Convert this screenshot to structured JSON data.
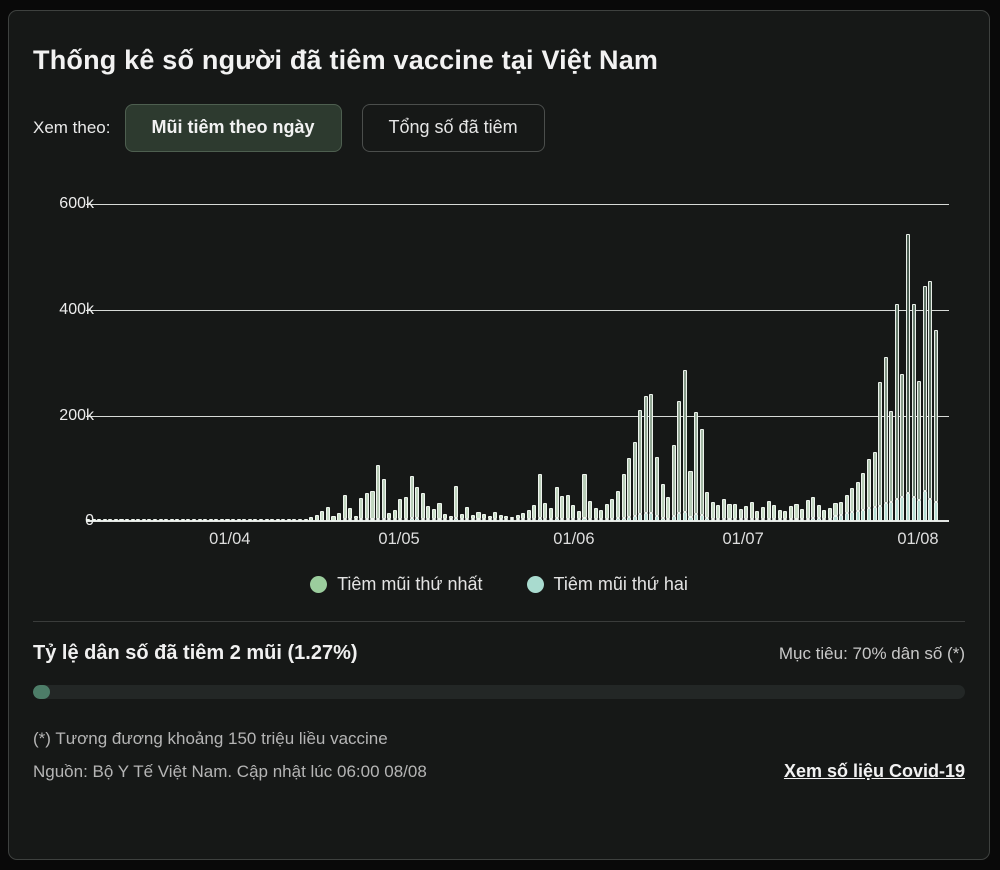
{
  "header": {
    "title": "Thống kê số người đã tiêm vaccine tại Việt Nam"
  },
  "controls": {
    "label": "Xem theo:",
    "buttons": [
      {
        "label": "Mũi tiêm theo ngày",
        "active": true
      },
      {
        "label": "Tổng số đã tiêm",
        "active": false
      }
    ]
  },
  "chart_data": {
    "type": "bar",
    "stacked": true,
    "title": "",
    "xlabel": "",
    "ylabel": "",
    "unit": "doses per day, values in thousands",
    "ylim_k": [
      0,
      600
    ],
    "grid": true,
    "legend_position": "bottom",
    "yticks": [
      {
        "label": "600k",
        "value_k": 600
      },
      {
        "label": "400k",
        "value_k": 400
      },
      {
        "label": "200k",
        "value_k": 200
      },
      {
        "label": "0",
        "value_k": 0
      }
    ],
    "xticks": [
      {
        "label": "01/04",
        "index": 25
      },
      {
        "label": "01/05",
        "index": 55
      },
      {
        "label": "01/06",
        "index": 86
      },
      {
        "label": "01/07",
        "index": 116
      },
      {
        "label": "01/08",
        "index": 147
      }
    ],
    "series": [
      {
        "name": "Tiêm mũi thứ nhất",
        "color": "#9bcd9d",
        "values_k": [
          1.4,
          0.9,
          0.6,
          2.1,
          3,
          2.4,
          1,
          0.8,
          2.6,
          3.1,
          1.5,
          0.7,
          2.2,
          1.1,
          0.6,
          2.8,
          1.9,
          0.9,
          1.2,
          2.5,
          1.6,
          0.8,
          1,
          2.2,
          1.8,
          2,
          1.2,
          0.8,
          2.4,
          1.6,
          1,
          2.8,
          1.4,
          0.9,
          2,
          3.2,
          1.8,
          1.1,
          2.6,
          3.4,
          6,
          11,
          19,
          26,
          9,
          14,
          44,
          20,
          4,
          38,
          49,
          53,
          101,
          75,
          11,
          16,
          37,
          40,
          81,
          59,
          48,
          24,
          19,
          30,
          8,
          4,
          62,
          9,
          21,
          7,
          12,
          9,
          5,
          12,
          7,
          4,
          3,
          6,
          10,
          16,
          26,
          83,
          30,
          20,
          59,
          42,
          44,
          26,
          14,
          83,
          34,
          20,
          17,
          28,
          37,
          51,
          83,
          111,
          139,
          196,
          222,
          224,
          112,
          64,
          41,
          134,
          212,
          267,
          88,
          193,
          162,
          50,
          31,
          25,
          37,
          28,
          28,
          19,
          24,
          31,
          15,
          22,
          34,
          25,
          17,
          14,
          23,
          28,
          19,
          36,
          41,
          24,
          16,
          20,
          25,
          25,
          35,
          46,
          55,
          70,
          93,
          103,
          233,
          275,
          171,
          368,
          233,
          489,
          364,
          226,
          387,
          412,
          324
        ]
      },
      {
        "name": "Tiêm mũi thứ hai",
        "color": "#a9dbcf",
        "values_k": [
          0,
          0,
          0,
          0,
          0,
          0,
          0,
          0,
          0,
          0,
          0,
          0,
          0,
          0,
          0,
          0,
          0,
          0,
          0,
          0,
          0,
          0,
          0,
          0,
          0,
          0,
          0,
          0,
          0,
          0,
          0,
          0,
          0,
          0,
          0,
          0,
          0,
          0,
          0,
          0,
          0,
          0,
          0,
          0,
          0,
          0,
          1,
          1,
          1,
          2,
          2,
          2,
          3,
          3,
          2,
          2,
          3,
          3,
          4,
          4,
          3,
          2,
          2,
          3,
          1,
          1,
          4,
          2,
          3,
          1,
          2,
          1,
          1,
          2,
          1,
          1,
          1,
          1,
          2,
          2,
          3,
          5,
          3,
          2,
          4,
          3,
          3,
          2,
          1,
          5,
          3,
          2,
          2,
          3,
          3,
          4,
          5,
          7,
          9,
          12,
          14,
          14,
          8,
          5,
          3,
          9,
          14,
          17,
          6,
          12,
          10,
          4,
          3,
          2,
          3,
          2,
          2,
          3,
          2,
          2,
          3,
          2,
          2,
          3,
          3,
          2,
          2,
          3,
          3,
          2,
          4,
          5,
          3,
          2,
          9,
          11,
          14,
          16,
          18,
          20,
          24,
          26,
          28,
          34,
          36,
          40,
          44,
          52,
          44,
          38,
          55,
          40,
          36
        ]
      }
    ]
  },
  "progress": {
    "title": "Tỷ lệ dân số đã tiêm 2 mũi (1.27%)",
    "goal": "Mục tiêu: 70% dân số (*)",
    "percent": 1.27,
    "target_percent": 70,
    "fill_color": "#4d7d68"
  },
  "footer": {
    "note": "(*) Tương đương khoảng 150 triệu liều vaccine",
    "source": "Nguồn: Bộ Y Tế Việt Nam. Cập nhật lúc 06:00 08/08",
    "link": "Xem số liệu Covid-19"
  },
  "colors": {
    "card_bg": "#161817",
    "page_bg": "#090909",
    "card_border": "#3e413f",
    "bar_light": "#cfe4cd",
    "bar_dark": "#4b5e52",
    "bar_border": "#eef3ee",
    "dose2_fill": "#b7ded4",
    "active_button_bg": "#2d3a2f",
    "progress_fill": "#4d7d68"
  }
}
